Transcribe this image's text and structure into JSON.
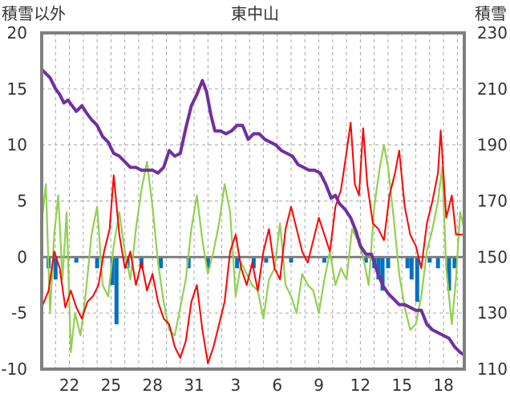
{
  "chart_data": {
    "type": "line",
    "title": "東中山",
    "y_left_label": "積雪以外",
    "y_right_label": "積雪",
    "y_left_range": [
      -10,
      20
    ],
    "y_right_range": [
      110,
      230
    ],
    "y_left_ticks": [
      "20",
      "15",
      "10",
      "5",
      "0",
      "-5",
      "-10"
    ],
    "y_right_ticks": [
      "230",
      "210",
      "190",
      "170",
      "150",
      "130",
      "110"
    ],
    "x_range": [
      0,
      30.5
    ],
    "x_tick_positions": [
      2,
      5,
      8,
      11,
      14,
      17,
      20,
      23,
      26,
      29
    ],
    "x_tick_labels": [
      "22",
      "25",
      "28",
      "31",
      "3",
      "6",
      "9",
      "12",
      "15",
      "18"
    ],
    "grid": "dashed",
    "colors": {
      "snow_depth": "#7030a0",
      "red_series": "#ff0000",
      "green_series": "#92d050",
      "bars": "#0070c0",
      "frame": "#808080"
    },
    "snow_depth": {
      "axis": "right",
      "points": [
        [
          0,
          217
        ],
        [
          0.6,
          214
        ],
        [
          1.0,
          210
        ],
        [
          1.3,
          208
        ],
        [
          1.6,
          205
        ],
        [
          1.9,
          206
        ],
        [
          2.2,
          204
        ],
        [
          2.5,
          202
        ],
        [
          2.9,
          204
        ],
        [
          3.3,
          201
        ],
        [
          3.6,
          199
        ],
        [
          4.0,
          197
        ],
        [
          4.4,
          193
        ],
        [
          4.8,
          191
        ],
        [
          5.2,
          187
        ],
        [
          5.6,
          186
        ],
        [
          6.0,
          184
        ],
        [
          6.4,
          182
        ],
        [
          6.8,
          182
        ],
        [
          7.2,
          181
        ],
        [
          7.6,
          181
        ],
        [
          8.0,
          181
        ],
        [
          8.4,
          180
        ],
        [
          8.8,
          182
        ],
        [
          9.2,
          188
        ],
        [
          9.6,
          186
        ],
        [
          10.0,
          187
        ],
        [
          10.4,
          196
        ],
        [
          10.8,
          204
        ],
        [
          11.2,
          208
        ],
        [
          11.6,
          213
        ],
        [
          11.9,
          209
        ],
        [
          12.2,
          201
        ],
        [
          12.5,
          195
        ],
        [
          12.9,
          195
        ],
        [
          13.3,
          194
        ],
        [
          13.7,
          195
        ],
        [
          14.1,
          197
        ],
        [
          14.5,
          197
        ],
        [
          14.9,
          192
        ],
        [
          15.3,
          194
        ],
        [
          15.7,
          194
        ],
        [
          16.1,
          192
        ],
        [
          16.5,
          191
        ],
        [
          16.9,
          190
        ],
        [
          17.3,
          188
        ],
        [
          17.7,
          187
        ],
        [
          18.1,
          186
        ],
        [
          18.5,
          183
        ],
        [
          18.9,
          182
        ],
        [
          19.3,
          181
        ],
        [
          19.7,
          181
        ],
        [
          20.1,
          180
        ],
        [
          20.5,
          176
        ],
        [
          20.9,
          171
        ],
        [
          21.2,
          172
        ],
        [
          21.5,
          169
        ],
        [
          21.9,
          167
        ],
        [
          22.3,
          164
        ],
        [
          22.7,
          159
        ],
        [
          23.0,
          154
        ],
        [
          23.4,
          151
        ],
        [
          23.8,
          151
        ],
        [
          24.2,
          145
        ],
        [
          24.6,
          140
        ],
        [
          25.0,
          137
        ],
        [
          25.4,
          135
        ],
        [
          25.8,
          133
        ],
        [
          26.2,
          133
        ],
        [
          26.6,
          132
        ],
        [
          27.0,
          131
        ],
        [
          27.4,
          131
        ],
        [
          27.8,
          126
        ],
        [
          28.2,
          124
        ],
        [
          28.6,
          123
        ],
        [
          29.0,
          122
        ],
        [
          29.4,
          121
        ],
        [
          29.8,
          118
        ],
        [
          30.2,
          116
        ],
        [
          30.5,
          115
        ]
      ]
    },
    "red_series": {
      "axis": "left",
      "points": [
        [
          0,
          -4.5
        ],
        [
          0.5,
          -3.0
        ],
        [
          0.9,
          0.5
        ],
        [
          1.3,
          -1.0
        ],
        [
          1.7,
          -4.5
        ],
        [
          2.1,
          -3.0
        ],
        [
          2.5,
          -4.5
        ],
        [
          2.9,
          -5.5
        ],
        [
          3.3,
          -4.0
        ],
        [
          3.7,
          -3.5
        ],
        [
          4.1,
          -2.5
        ],
        [
          4.5,
          0.5
        ],
        [
          4.9,
          2.5
        ],
        [
          5.2,
          7.3
        ],
        [
          5.6,
          2.0
        ],
        [
          6.0,
          -1.0
        ],
        [
          6.4,
          0.5
        ],
        [
          6.8,
          -2.5
        ],
        [
          7.2,
          -0.5
        ],
        [
          7.6,
          -3.0
        ],
        [
          8.0,
          -1.5
        ],
        [
          8.4,
          -4.0
        ],
        [
          8.8,
          -5.5
        ],
        [
          9.2,
          -6.0
        ],
        [
          9.6,
          -8.0
        ],
        [
          10.0,
          -9.0
        ],
        [
          10.4,
          -7.5
        ],
        [
          10.8,
          -4.0
        ],
        [
          11.2,
          -2.5
        ],
        [
          11.6,
          -6.5
        ],
        [
          12.0,
          -9.5
        ],
        [
          12.4,
          -8.0
        ],
        [
          12.8,
          -6.0
        ],
        [
          13.2,
          -4.0
        ],
        [
          13.6,
          0.5
        ],
        [
          14.0,
          2.0
        ],
        [
          14.4,
          -1.0
        ],
        [
          14.8,
          -2.5
        ],
        [
          15.2,
          -0.5
        ],
        [
          15.6,
          -3.0
        ],
        [
          16.0,
          0.5
        ],
        [
          16.4,
          2.5
        ],
        [
          16.8,
          -1.0
        ],
        [
          17.2,
          -2.0
        ],
        [
          17.6,
          2.5
        ],
        [
          18.0,
          4.5
        ],
        [
          18.4,
          2.5
        ],
        [
          18.8,
          0.5
        ],
        [
          19.2,
          -0.5
        ],
        [
          19.6,
          1.5
        ],
        [
          20.0,
          3.5
        ],
        [
          20.4,
          2.0
        ],
        [
          20.8,
          0.5
        ],
        [
          21.2,
          4.5
        ],
        [
          21.6,
          6.0
        ],
        [
          21.9,
          8.5
        ],
        [
          22.3,
          12.0
        ],
        [
          22.6,
          6.5
        ],
        [
          22.9,
          5.5
        ],
        [
          23.2,
          11.5
        ],
        [
          23.5,
          6.5
        ],
        [
          23.9,
          3.0
        ],
        [
          24.3,
          2.5
        ],
        [
          24.7,
          1.5
        ],
        [
          25.1,
          5.5
        ],
        [
          25.5,
          7.5
        ],
        [
          25.8,
          9.5
        ],
        [
          26.2,
          4.5
        ],
        [
          26.6,
          2.0
        ],
        [
          27.0,
          1.0
        ],
        [
          27.4,
          -1.0
        ],
        [
          27.8,
          3.0
        ],
        [
          28.2,
          5.0
        ],
        [
          28.6,
          7.5
        ],
        [
          28.8,
          11.3
        ],
        [
          29.2,
          3.5
        ],
        [
          29.6,
          5.5
        ],
        [
          29.9,
          2.0
        ],
        [
          30.2,
          2.0
        ],
        [
          30.5,
          2.0
        ]
      ]
    },
    "green_series": {
      "axis": "left",
      "points": [
        [
          0,
          3.0
        ],
        [
          0.3,
          6.5
        ],
        [
          0.6,
          -5.0
        ],
        [
          0.9,
          2.0
        ],
        [
          1.2,
          5.5
        ],
        [
          1.5,
          -2.0
        ],
        [
          1.8,
          4.0
        ],
        [
          2.1,
          -8.5
        ],
        [
          2.4,
          -5.0
        ],
        [
          2.8,
          -7.0
        ],
        [
          3.2,
          -3.0
        ],
        [
          3.6,
          2.0
        ],
        [
          4.0,
          4.5
        ],
        [
          4.4,
          -2.5
        ],
        [
          4.8,
          -3.5
        ],
        [
          5.2,
          1.0
        ],
        [
          5.6,
          4.0
        ],
        [
          6.0,
          0.5
        ],
        [
          6.4,
          -2.0
        ],
        [
          6.8,
          2.5
        ],
        [
          7.2,
          6.0
        ],
        [
          7.6,
          8.5
        ],
        [
          8.0,
          4.5
        ],
        [
          8.4,
          -0.5
        ],
        [
          8.8,
          -4.0
        ],
        [
          9.2,
          -6.5
        ],
        [
          9.6,
          -7.0
        ],
        [
          10.0,
          -4.5
        ],
        [
          10.4,
          -2.0
        ],
        [
          10.8,
          2.5
        ],
        [
          11.2,
          5.5
        ],
        [
          11.6,
          1.5
        ],
        [
          12.0,
          -1.5
        ],
        [
          12.4,
          0.5
        ],
        [
          12.8,
          3.0
        ],
        [
          13.2,
          6.5
        ],
        [
          13.6,
          4.0
        ],
        [
          14.0,
          -3.5
        ],
        [
          14.4,
          -0.5
        ],
        [
          14.8,
          -1.5
        ],
        [
          15.2,
          -2.5
        ],
        [
          15.6,
          -3.0
        ],
        [
          16.0,
          -5.5
        ],
        [
          16.4,
          -2.0
        ],
        [
          16.8,
          -1.0
        ],
        [
          17.2,
          3.0
        ],
        [
          17.6,
          -2.5
        ],
        [
          18.0,
          -3.5
        ],
        [
          18.4,
          -5.0
        ],
        [
          18.8,
          -1.5
        ],
        [
          19.2,
          -2.5
        ],
        [
          19.6,
          -3.0
        ],
        [
          20.0,
          -5.0
        ],
        [
          20.4,
          -2.0
        ],
        [
          20.8,
          0.5
        ],
        [
          21.2,
          -2.5
        ],
        [
          21.6,
          -1.0
        ],
        [
          22.0,
          -2.0
        ],
        [
          22.4,
          2.5
        ],
        [
          22.8,
          1.5
        ],
        [
          23.2,
          0.0
        ],
        [
          23.6,
          -2.5
        ],
        [
          24.0,
          4.5
        ],
        [
          24.4,
          8.0
        ],
        [
          24.7,
          10.0
        ],
        [
          25.0,
          8.0
        ],
        [
          25.4,
          3.5
        ],
        [
          25.8,
          -1.5
        ],
        [
          26.2,
          -4.5
        ],
        [
          26.6,
          -6.5
        ],
        [
          27.0,
          -6.0
        ],
        [
          27.4,
          -3.5
        ],
        [
          27.8,
          0.5
        ],
        [
          28.2,
          2.5
        ],
        [
          28.6,
          5.0
        ],
        [
          28.9,
          8.0
        ],
        [
          29.2,
          -1.0
        ],
        [
          29.6,
          -6.0
        ],
        [
          29.9,
          -2.0
        ],
        [
          30.2,
          4.0
        ],
        [
          30.5,
          2.5
        ]
      ]
    },
    "bars": {
      "axis": "left",
      "points": [
        [
          0.5,
          -1.0
        ],
        [
          1.0,
          -2.0
        ],
        [
          2.5,
          -0.5
        ],
        [
          4.0,
          -1.0
        ],
        [
          5.1,
          -2.5
        ],
        [
          5.4,
          -6.0
        ],
        [
          6.2,
          -1.0
        ],
        [
          7.2,
          -1.0
        ],
        [
          8.6,
          -1.0
        ],
        [
          10.6,
          -1.0
        ],
        [
          12.0,
          -1.0
        ],
        [
          14.1,
          -1.0
        ],
        [
          15.3,
          -1.0
        ],
        [
          16.2,
          -0.5
        ],
        [
          18.0,
          -0.5
        ],
        [
          20.4,
          -0.5
        ],
        [
          23.4,
          -0.5
        ],
        [
          24.0,
          -1.0
        ],
        [
          24.3,
          -2.0
        ],
        [
          24.6,
          -3.0
        ],
        [
          25.0,
          -1.0
        ],
        [
          26.4,
          -1.0
        ],
        [
          26.7,
          -2.0
        ],
        [
          27.1,
          -4.0
        ],
        [
          28.0,
          -0.5
        ],
        [
          28.6,
          -1.0
        ],
        [
          29.4,
          -3.0
        ],
        [
          29.8,
          -1.0
        ]
      ]
    }
  }
}
